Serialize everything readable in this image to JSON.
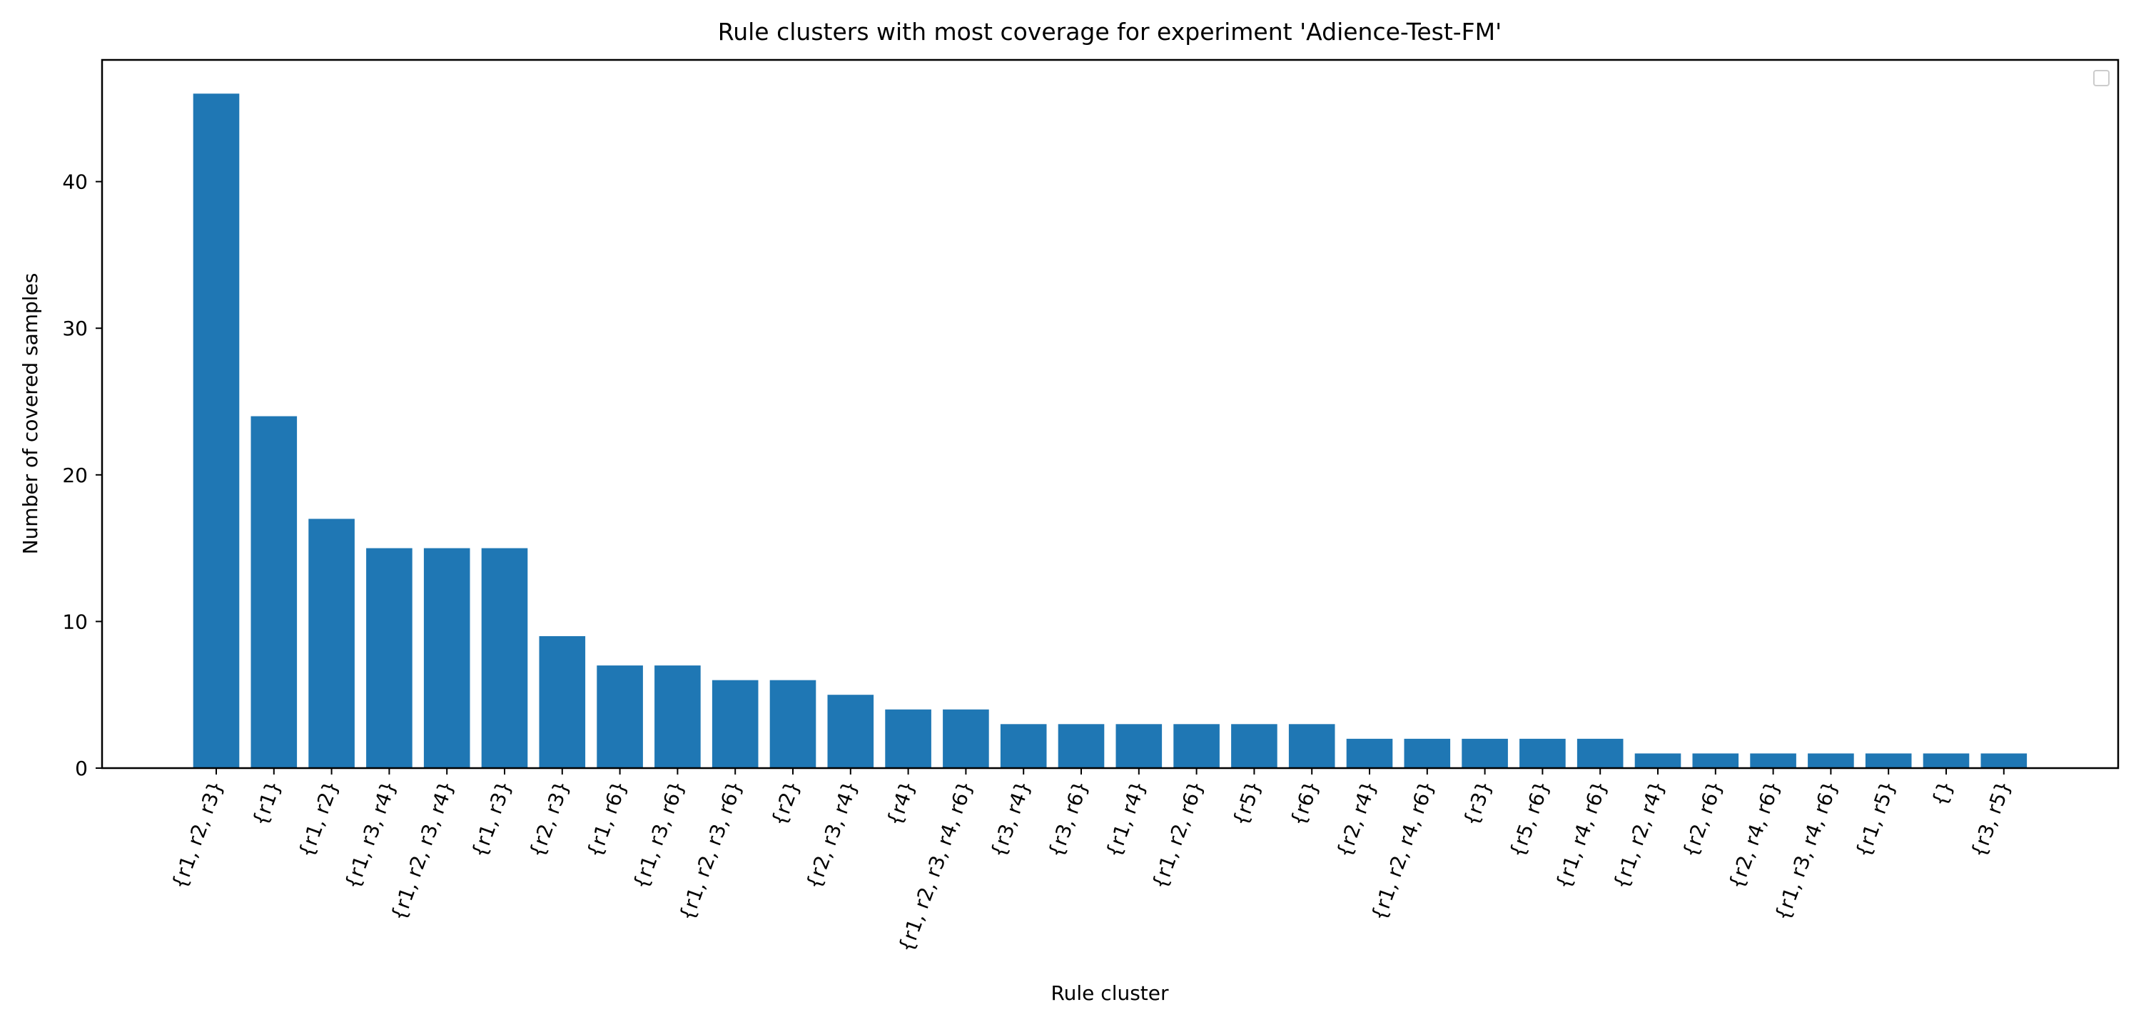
{
  "chart_data": {
    "type": "bar",
    "title": "Rule clusters with most coverage for experiment 'Adience-Test-FM'",
    "xlabel": "Rule cluster",
    "ylabel": "Number of covered samples",
    "categories": [
      "{r1, r2, r3}",
      "{r1}",
      "{r1, r2}",
      "{r1, r3, r4}",
      "{r1, r2, r3, r4}",
      "{r1, r3}",
      "{r2, r3}",
      "{r1, r6}",
      "{r1, r3, r6}",
      "{r1, r2, r3, r6}",
      "{r2}",
      "{r2, r3, r4}",
      "{r4}",
      "{r1, r2, r3, r4, r6}",
      "{r3, r4}",
      "{r3, r6}",
      "{r1, r4}",
      "{r1, r2, r6}",
      "{r5}",
      "{r6}",
      "{r2, r4}",
      "{r1, r2, r4, r6}",
      "{r3}",
      "{r5, r6}",
      "{r1, r4, r6}",
      "{r1, r2, r4}",
      "{r2, r6}",
      "{r2, r4, r6}",
      "{r1, r3, r4, r6}",
      "{r1, r5}",
      "{}",
      "{r3, r5}"
    ],
    "values": [
      46,
      24,
      17,
      15,
      15,
      15,
      9,
      7,
      7,
      6,
      6,
      5,
      4,
      4,
      3,
      3,
      3,
      3,
      3,
      3,
      2,
      2,
      2,
      2,
      2,
      1,
      1,
      1,
      1,
      1,
      1,
      1
    ],
    "ylim": [
      0,
      48.3
    ],
    "yticks": [
      0,
      10,
      20,
      30,
      40
    ],
    "bar_color": "#1f77b4",
    "grid": false,
    "legend": {
      "placement": "top-right",
      "entries": []
    }
  }
}
